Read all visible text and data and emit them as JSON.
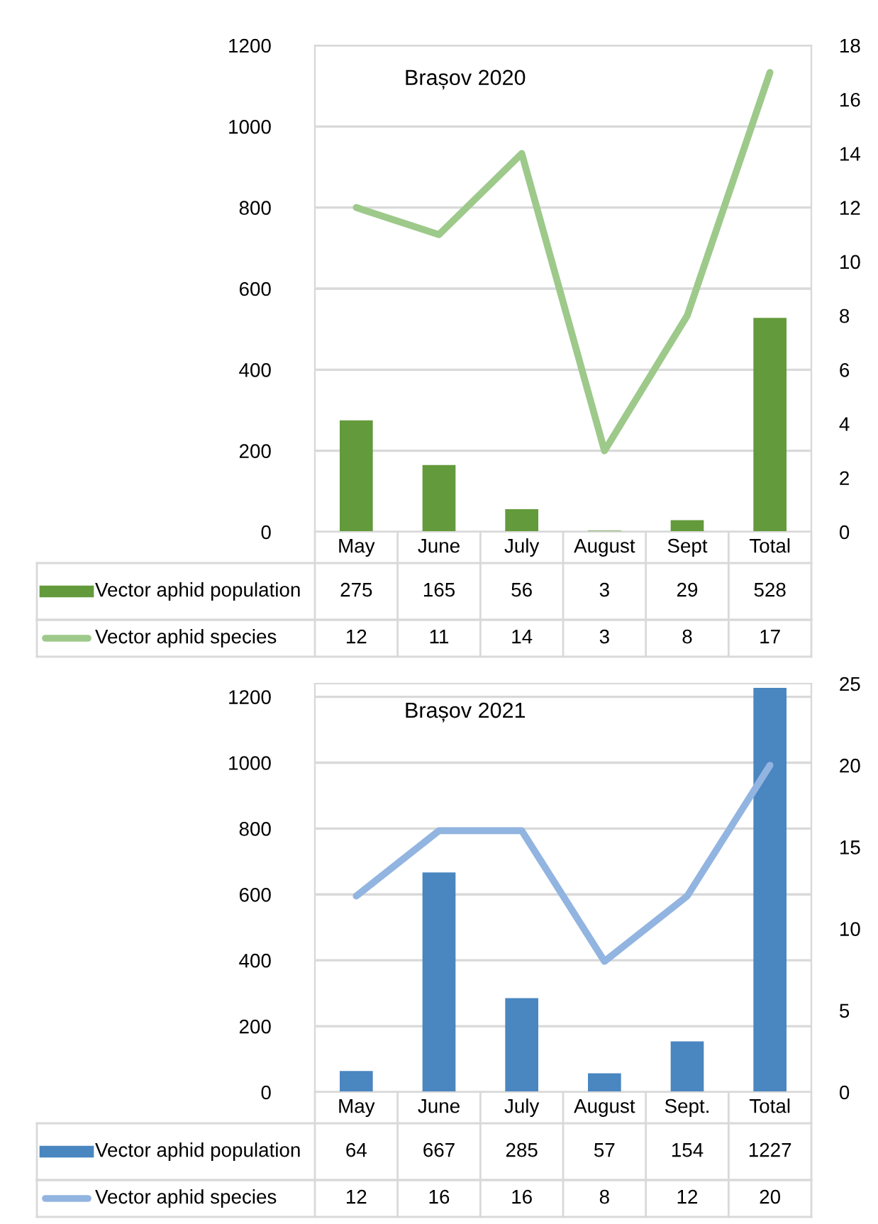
{
  "chart_data": [
    {
      "type": "bar",
      "title": "Brașov 2020",
      "categories": [
        "May",
        "June",
        "July",
        "August",
        "Sept",
        "Total"
      ],
      "series": [
        {
          "name": "Vector aphid population",
          "color": "#639a3b",
          "values": [
            275,
            165,
            56,
            3,
            29,
            528
          ]
        },
        {
          "name": "Vector aphid species",
          "type": "line",
          "axis": "y2",
          "color": "#9dc98a",
          "values": [
            12,
            11,
            14,
            3,
            8,
            17
          ]
        }
      ],
      "ylim": [
        0,
        1200
      ],
      "yticks": [
        0,
        200,
        400,
        600,
        800,
        1000,
        1200
      ],
      "y2lim": [
        0,
        18
      ],
      "y2ticks": [
        0,
        2,
        4,
        6,
        8,
        10,
        12,
        14,
        16,
        18
      ],
      "grid": "y",
      "legend": "bottom",
      "data_labels": true
    },
    {
      "type": "bar",
      "title": "Brașov 2021",
      "categories": [
        "May",
        "June",
        "July",
        "August",
        "Sept.",
        "Total"
      ],
      "series": [
        {
          "name": "Vector aphid population",
          "color": "#4a86c0",
          "values": [
            64,
            667,
            285,
            57,
            154,
            1227
          ]
        },
        {
          "name": "Vector aphid species",
          "type": "line",
          "axis": "y2",
          "color": "#92b4e0",
          "values": [
            12,
            16,
            16,
            8,
            12,
            20
          ]
        }
      ],
      "ylim": [
        0,
        1240
      ],
      "yticks": [
        0,
        200,
        400,
        600,
        800,
        1000,
        1200
      ],
      "y2lim": [
        0,
        25
      ],
      "y2ticks": [
        0,
        5,
        10,
        15,
        20,
        25
      ],
      "grid": "y",
      "legend": "bottom",
      "data_labels": true
    }
  ]
}
